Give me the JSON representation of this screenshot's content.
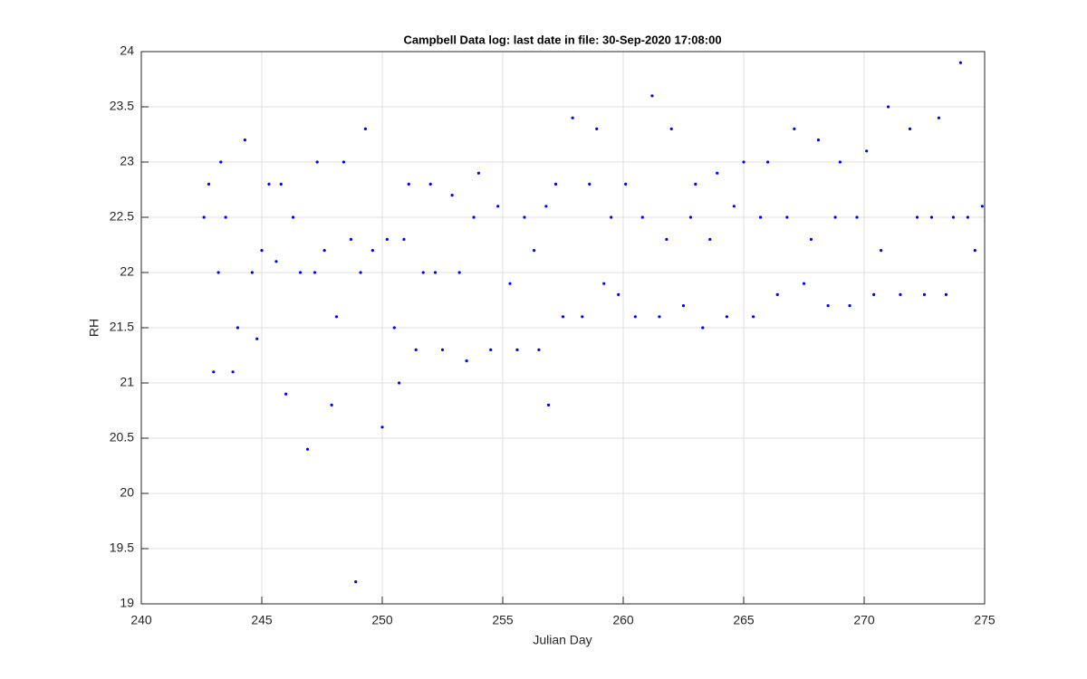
{
  "chart_data": {
    "type": "scatter",
    "title": "Campbell Data log: last date in file: 30-Sep-2020 17:08:00",
    "xlabel": "Julian Day",
    "ylabel": "RH",
    "color": "#0000ff",
    "x": [
      242.6,
      242.8,
      243.0,
      243.2,
      243.3,
      243.5,
      243.8,
      244.0,
      244.3,
      244.6,
      244.8,
      245.0,
      245.3,
      245.6,
      245.8,
      246.0,
      246.3,
      246.6,
      246.9,
      247.2,
      247.3,
      247.6,
      247.9,
      248.1,
      248.4,
      248.7,
      248.9,
      249.1,
      249.3,
      249.6,
      250.0,
      250.2,
      250.5,
      250.7,
      250.9,
      251.1,
      251.4,
      251.7,
      252.0,
      252.2,
      252.5,
      252.9,
      253.2,
      253.5,
      253.8,
      254.0,
      254.5,
      254.8,
      255.3,
      255.6,
      255.9,
      256.3,
      256.5,
      256.8,
      256.9,
      257.2,
      257.5,
      257.9,
      258.3,
      258.6,
      258.9,
      259.2,
      259.5,
      259.8,
      260.1,
      260.5,
      260.8,
      261.2,
      261.5,
      261.8,
      262.0,
      262.5,
      262.8,
      263.0,
      263.3,
      263.6,
      263.9,
      264.3,
      264.6,
      265.0,
      265.4,
      265.7,
      266.0,
      266.4,
      266.8,
      267.1,
      267.5,
      267.8,
      268.1,
      268.5,
      268.8,
      269.0,
      269.4,
      269.7,
      270.1,
      270.4,
      270.7,
      271.0,
      271.5,
      271.9,
      272.2,
      272.5,
      272.8,
      273.1,
      273.4,
      273.7,
      274.0,
      274.3,
      274.6,
      274.9
    ],
    "values": [
      22.5,
      22.8,
      21.1,
      22.0,
      23.0,
      22.5,
      21.1,
      21.5,
      23.2,
      22.0,
      21.4,
      22.2,
      22.8,
      22.1,
      22.8,
      20.9,
      22.5,
      22.0,
      20.4,
      22.0,
      23.0,
      22.2,
      20.8,
      21.6,
      23.0,
      22.3,
      19.2,
      22.0,
      23.3,
      22.2,
      20.6,
      22.3,
      21.5,
      21.0,
      22.3,
      22.8,
      21.3,
      22.0,
      22.8,
      22.0,
      21.3,
      22.7,
      22.0,
      21.2,
      22.5,
      22.9,
      21.3,
      22.6,
      21.9,
      21.3,
      22.5,
      22.2,
      21.3,
      22.6,
      20.8,
      22.8,
      21.6,
      23.4,
      21.6,
      22.8,
      23.3,
      21.9,
      22.5,
      21.8,
      22.8,
      21.6,
      22.5,
      23.6,
      21.6,
      22.3,
      23.3,
      21.7,
      22.5,
      22.8,
      21.5,
      22.3,
      22.9,
      21.6,
      22.6,
      23.0,
      21.6,
      22.5,
      23.0,
      21.8,
      22.5,
      23.3,
      21.9,
      22.3,
      23.2,
      21.7,
      22.5,
      23.0,
      21.7,
      22.5,
      23.1,
      21.8,
      22.2,
      23.5,
      21.8,
      23.3,
      22.5,
      21.8,
      22.5,
      23.4,
      21.8,
      22.5,
      23.9,
      22.5,
      22.2,
      22.6
    ],
    "xlim": [
      240,
      275
    ],
    "xticks": [
      240,
      245,
      250,
      255,
      260,
      265,
      270,
      275
    ],
    "ylim": [
      19,
      24
    ],
    "yticks": [
      19,
      19.5,
      20,
      20.5,
      21,
      21.5,
      22,
      22.5,
      23,
      23.5,
      24
    ],
    "grid": true
  }
}
